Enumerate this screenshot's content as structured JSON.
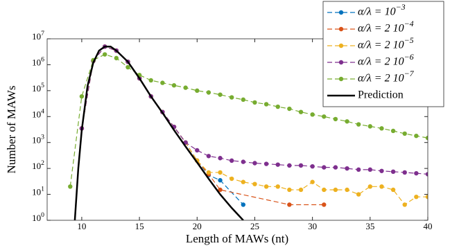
{
  "chart_data": {
    "type": "line",
    "xlabel": "Length of MAWs (nt)",
    "ylabel": "Number of MAWs",
    "log_y": true,
    "xlim": [
      7,
      40
    ],
    "xticks": [
      10,
      15,
      20,
      25,
      30,
      35,
      40
    ],
    "ylim": [
      1,
      10000000
    ],
    "yticks": [
      {
        "value": 1,
        "label": "10^0"
      },
      {
        "value": 10,
        "label": "10^1"
      },
      {
        "value": 100,
        "label": "10^2"
      },
      {
        "value": 1000,
        "label": "10^3"
      },
      {
        "value": 10000,
        "label": "10^4"
      },
      {
        "value": 100000,
        "label": "10^5"
      },
      {
        "value": 1000000,
        "label": "10^6"
      },
      {
        "value": 10000000,
        "label": "10^7"
      }
    ],
    "legend": "upper right",
    "series": [
      {
        "name": "α/λ = 10^−3",
        "color": "#0072bd",
        "dashed": true,
        "markers": true,
        "x": [
          10,
          11,
          12,
          13,
          14,
          15,
          16,
          17,
          18,
          19,
          20,
          21,
          22,
          24
        ],
        "values": [
          3500,
          1400000,
          5000000,
          3500000,
          1300000,
          300000,
          60000,
          15000,
          4000,
          1000,
          200,
          55,
          35,
          4
        ]
      },
      {
        "name": "α/λ = 2 10^−4",
        "color": "#d95319",
        "dashed": true,
        "markers": true,
        "x": [
          10,
          11,
          12,
          13,
          14,
          15,
          16,
          17,
          18,
          19,
          20,
          21,
          22,
          28,
          31
        ],
        "values": [
          3500,
          1400000,
          5000000,
          3500000,
          1300000,
          300000,
          60000,
          15000,
          4000,
          1000,
          200,
          60,
          15,
          4,
          4
        ]
      },
      {
        "name": "α/λ = 2 10^−5",
        "color": "#edb120",
        "dashed": true,
        "markers": true,
        "x": [
          10,
          11,
          12,
          13,
          14,
          15,
          16,
          17,
          18,
          19,
          20,
          21,
          22,
          23,
          24,
          25,
          26,
          27,
          28,
          29,
          30,
          31,
          32,
          33,
          34,
          35,
          36,
          37,
          38,
          39,
          40
        ],
        "values": [
          3500,
          1400000,
          5000000,
          3500000,
          1300000,
          300000,
          60000,
          15000,
          4000,
          1000,
          200,
          70,
          70,
          40,
          30,
          25,
          20,
          20,
          15,
          15,
          30,
          15,
          15,
          15,
          10,
          20,
          20,
          15,
          4,
          8,
          8
        ]
      },
      {
        "name": "α/λ = 2 10^−6",
        "color": "#7e2f8e",
        "dashed": true,
        "markers": true,
        "x": [
          10,
          11,
          12,
          13,
          14,
          15,
          16,
          17,
          18,
          19,
          20,
          21,
          22,
          23,
          24,
          25,
          26,
          27,
          28,
          29,
          30,
          31,
          32,
          33,
          34,
          35,
          36,
          37,
          38,
          39,
          40
        ],
        "values": [
          3500,
          1400000,
          5000000,
          3500000,
          1300000,
          300000,
          60000,
          15000,
          4000,
          1000,
          500,
          300,
          250,
          200,
          180,
          160,
          150,
          140,
          130,
          130,
          120,
          110,
          110,
          100,
          90,
          90,
          80,
          75,
          70,
          65,
          60
        ]
      },
      {
        "name": "α/λ = 2 10^−7",
        "color": "#77ac30",
        "dashed": true,
        "markers": true,
        "x": [
          9,
          10,
          11,
          12,
          13,
          14,
          15,
          16,
          17,
          18,
          19,
          20,
          21,
          22,
          23,
          24,
          25,
          26,
          27,
          28,
          29,
          30,
          31,
          32,
          33,
          34,
          35,
          36,
          37,
          38,
          39,
          40
        ],
        "values": [
          20,
          60000,
          1500000,
          2500000,
          1800000,
          800000,
          400000,
          250000,
          200000,
          160000,
          130000,
          100000,
          85000,
          70000,
          55000,
          45000,
          35000,
          30000,
          24000,
          20000,
          15000,
          12000,
          10000,
          8000,
          6500,
          5000,
          4200,
          3500,
          2800,
          2200,
          1800,
          1500
        ]
      },
      {
        "name": "Prediction",
        "color": "#000000",
        "dashed": false,
        "markers": false,
        "x": [
          9.4,
          9.7,
          10,
          10.5,
          11,
          11.5,
          12,
          12.5,
          13,
          14,
          15,
          16,
          17,
          18,
          19,
          20,
          21,
          22,
          23,
          24
        ],
        "values": [
          1,
          100,
          3000,
          150000,
          1200000,
          3500000,
          5000000,
          5000000,
          3500000,
          1300000,
          300000,
          60000,
          14000,
          3000,
          700,
          170,
          40,
          10,
          3,
          1
        ]
      }
    ]
  }
}
